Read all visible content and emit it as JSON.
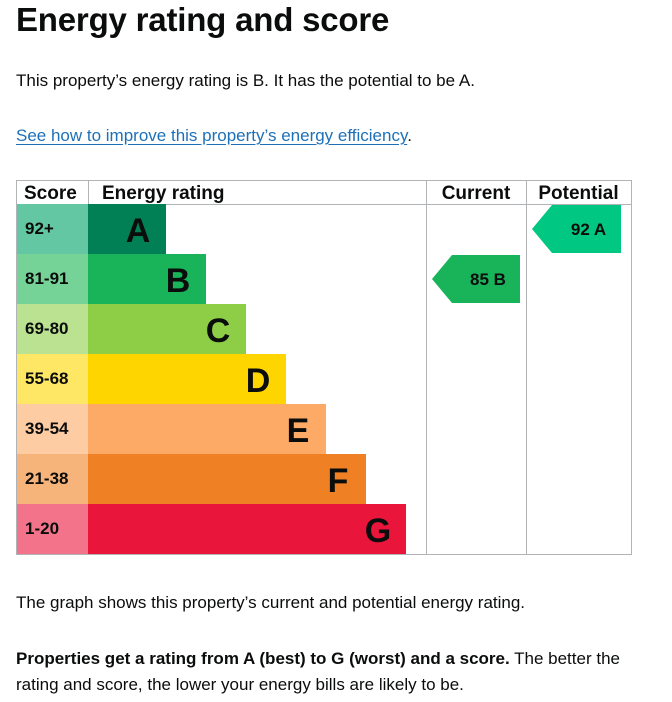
{
  "page": {
    "title": "Energy rating and score",
    "rating_sentence": "This property’s energy rating is B. It has the potential to be A.",
    "improve_link": "See how to improve this property’s energy efficiency",
    "improve_link_suffix": ".",
    "graph_caption": "The graph shows this property’s current and potential energy rating.",
    "explanation_bold": "Properties get a rating from A (best) to G (worst) and a score.",
    "explanation_rest": " The better the rating and score, the lower your energy bills are likely to be."
  },
  "chart_data": {
    "type": "bar",
    "headers": {
      "score": "Score",
      "rating": "Energy rating",
      "current": "Current",
      "potential": "Potential"
    },
    "bands": [
      {
        "range": "92+",
        "letter": "A",
        "color": "#008054",
        "light": "#64c7a3"
      },
      {
        "range": "81-91",
        "letter": "B",
        "color": "#19b459",
        "light": "#75d398"
      },
      {
        "range": "69-80",
        "letter": "C",
        "color": "#8dce46",
        "light": "#bbe290"
      },
      {
        "range": "55-68",
        "letter": "D",
        "color": "#ffd500",
        "light": "#ffe766"
      },
      {
        "range": "39-54",
        "letter": "E",
        "color": "#fcaa65",
        "light": "#fdcca3"
      },
      {
        "range": "21-38",
        "letter": "F",
        "color": "#ef8023",
        "light": "#f6b47b"
      },
      {
        "range": "1-20",
        "letter": "G",
        "color": "#e9153b",
        "light": "#f2738a"
      }
    ],
    "current": {
      "score": "85",
      "letter": "B",
      "color": "#19b459"
    },
    "potential": {
      "score": "92",
      "letter": "A",
      "color": "#00c781"
    }
  }
}
